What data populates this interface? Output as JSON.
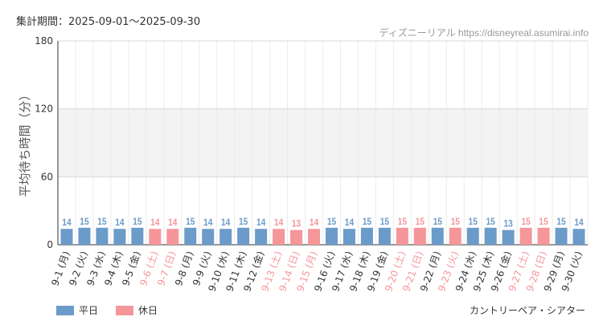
{
  "header": {
    "period": "集計期間：2025-09-01～2025-09-30",
    "source": "ディズニーリアル https://disneyreal.asumirai.info"
  },
  "footer": {
    "attraction": "カントリーベア・シアター"
  },
  "colors": {
    "weekday": "#6b9bc9",
    "holiday": "#f5969a",
    "band": "#f3f3f3",
    "grid": "#e5e5e5"
  },
  "legend": [
    {
      "label": "平日",
      "kind": "weekday"
    },
    {
      "label": "休日",
      "kind": "holiday"
    }
  ],
  "chart_data": {
    "type": "bar",
    "ylabel": "平均待ち時間（分）",
    "ylim": [
      0,
      180
    ],
    "yticks": [
      0,
      60,
      120,
      180
    ],
    "categories": [
      "9-1 (月)",
      "9-2 (火)",
      "9-3 (水)",
      "9-4 (木)",
      "9-5 (金)",
      "9-6 (土)",
      "9-7 (日)",
      "9-8 (月)",
      "9-9 (火)",
      "9-10 (水)",
      "9-11 (木)",
      "9-12 (金)",
      "9-13 (土)",
      "9-14 (日)",
      "9-15 (月)",
      "9-16 (火)",
      "9-17 (水)",
      "9-18 (木)",
      "9-19 (金)",
      "9-20 (土)",
      "9-21 (日)",
      "9-22 (月)",
      "9-23 (火)",
      "9-24 (水)",
      "9-25 (木)",
      "9-26 (金)",
      "9-27 (土)",
      "9-28 (日)",
      "9-29 (月)",
      "9-30 (火)"
    ],
    "values": [
      14,
      15,
      15,
      14,
      15,
      14,
      14,
      15,
      14,
      14,
      15,
      14,
      14,
      13,
      14,
      15,
      14,
      15,
      15,
      15,
      15,
      15,
      15,
      15,
      15,
      13,
      15,
      15,
      15,
      14
    ],
    "holiday": [
      false,
      false,
      false,
      false,
      false,
      true,
      true,
      false,
      false,
      false,
      false,
      false,
      true,
      true,
      true,
      false,
      false,
      false,
      false,
      true,
      true,
      false,
      true,
      false,
      false,
      false,
      true,
      true,
      false,
      false
    ]
  }
}
